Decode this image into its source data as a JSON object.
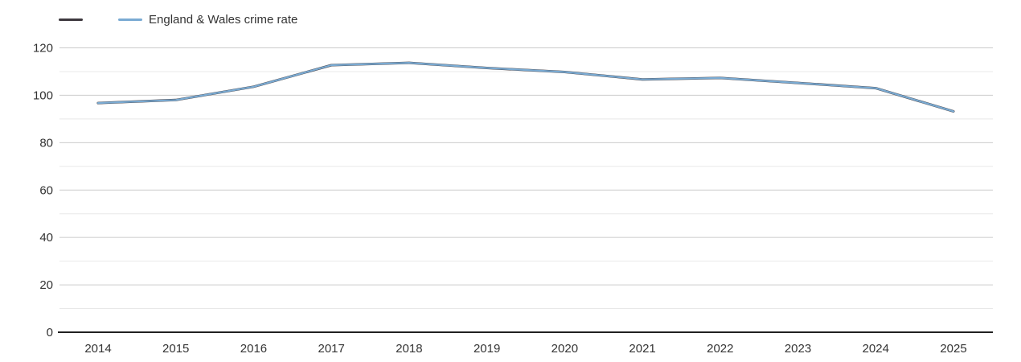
{
  "chart_data": {
    "type": "line",
    "title": "",
    "xlabel": "",
    "ylabel": "",
    "x": [
      2014,
      2015,
      2016,
      2017,
      2018,
      2019,
      2020,
      2021,
      2022,
      2023,
      2024,
      2025
    ],
    "series": [
      {
        "name": "",
        "color": "#3d383e",
        "values": [
          96.7,
          98.0,
          103.6,
          112.7,
          113.7,
          111.5,
          109.8,
          106.7,
          107.3,
          105.2,
          103.0,
          93.2
        ]
      },
      {
        "name": "England & Wales crime rate",
        "color": "#7aabd3",
        "values": [
          96.7,
          98.0,
          103.6,
          112.7,
          113.7,
          111.5,
          109.8,
          106.7,
          107.3,
          105.2,
          103.0,
          93.2
        ]
      }
    ],
    "ylim": [
      0,
      120
    ],
    "y_tick_step": 20,
    "y_minor_step": 10,
    "y_tick_labels": [
      "0",
      "20",
      "40",
      "60",
      "80",
      "100",
      "120"
    ],
    "x_tick_labels": [
      "2014",
      "2015",
      "2016",
      "2017",
      "2018",
      "2019",
      "2020",
      "2021",
      "2022",
      "2023",
      "2024",
      "2025"
    ],
    "grid": true,
    "legend_position": "top-left"
  },
  "colors": {
    "major_grid": "#cbcbcb",
    "minor_grid": "#e8e8e8",
    "axis_line": "#212121",
    "tick_text": "#333333",
    "background": "#ffffff"
  }
}
